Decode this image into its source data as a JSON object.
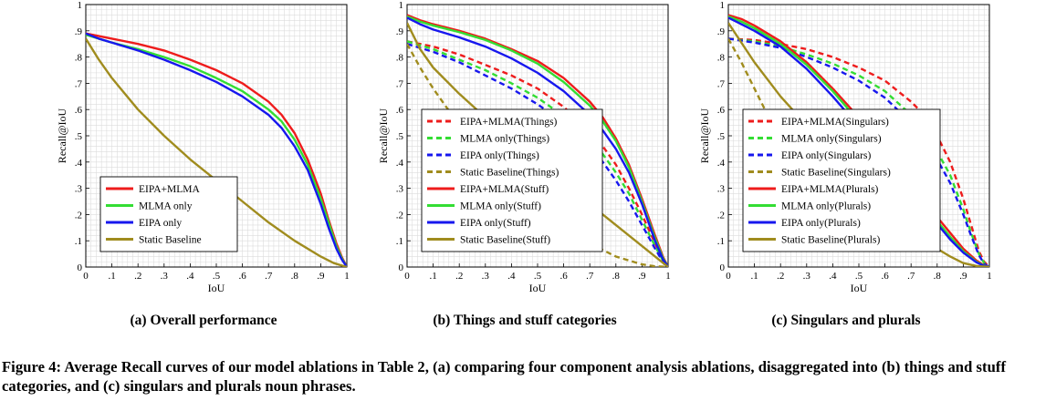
{
  "figure_caption": "Figure 4: Average Recall curves of our model ablations in Table 2, (a) comparing four component analysis ablations, disaggregated into (b) things and stuff categories, and (c) singulars and plurals noun phrases.",
  "colors": {
    "red": "#ee1c1c",
    "green": "#33dd33",
    "blue": "#1717ee",
    "olive": "#a08c1e",
    "grid": "#dcdcdc"
  },
  "chart_data": [
    {
      "id": "a",
      "subcaption": "(a) Overall performance",
      "type": "line",
      "xlabel": "IoU",
      "ylabel": "Recall@IoU",
      "xlim": [
        0,
        1
      ],
      "ylim": [
        0,
        1
      ],
      "xticks": [
        "0",
        ".1",
        ".2",
        ".3",
        ".4",
        ".5",
        ".6",
        ".7",
        ".8",
        ".9",
        "1"
      ],
      "yticks": [
        "0",
        ".1",
        ".2",
        ".3",
        ".4",
        ".5",
        ".6",
        ".7",
        ".8",
        ".9",
        "1"
      ],
      "grid": true,
      "legend_position": "bottom-left",
      "series": [
        {
          "name": "EIPA+MLMA",
          "color": "red",
          "dashed": false,
          "x": [
            0,
            0.05,
            0.1,
            0.2,
            0.3,
            0.4,
            0.5,
            0.6,
            0.7,
            0.75,
            0.8,
            0.85,
            0.9,
            0.93,
            0.96,
            0.98,
            1.0
          ],
          "y": [
            0.89,
            0.88,
            0.87,
            0.85,
            0.825,
            0.79,
            0.75,
            0.7,
            0.63,
            0.58,
            0.51,
            0.41,
            0.28,
            0.18,
            0.09,
            0.04,
            0.0
          ]
        },
        {
          "name": "MLMA only",
          "color": "green",
          "dashed": false,
          "x": [
            0,
            0.05,
            0.1,
            0.2,
            0.3,
            0.4,
            0.5,
            0.6,
            0.7,
            0.75,
            0.8,
            0.85,
            0.9,
            0.93,
            0.96,
            0.98,
            1.0
          ],
          "y": [
            0.885,
            0.87,
            0.855,
            0.83,
            0.8,
            0.765,
            0.72,
            0.67,
            0.6,
            0.555,
            0.485,
            0.39,
            0.26,
            0.17,
            0.08,
            0.035,
            0.0
          ]
        },
        {
          "name": "EIPA only",
          "color": "blue",
          "dashed": false,
          "x": [
            0,
            0.05,
            0.1,
            0.2,
            0.3,
            0.4,
            0.5,
            0.6,
            0.7,
            0.75,
            0.8,
            0.85,
            0.9,
            0.93,
            0.96,
            0.98,
            1.0
          ],
          "y": [
            0.89,
            0.87,
            0.855,
            0.825,
            0.79,
            0.75,
            0.705,
            0.65,
            0.58,
            0.53,
            0.46,
            0.37,
            0.24,
            0.15,
            0.07,
            0.03,
            0.0
          ]
        },
        {
          "name": "Static Baseline",
          "color": "olive",
          "dashed": false,
          "x": [
            0,
            0.05,
            0.1,
            0.2,
            0.3,
            0.4,
            0.5,
            0.6,
            0.7,
            0.8,
            0.9,
            0.95,
            1.0
          ],
          "y": [
            0.87,
            0.79,
            0.72,
            0.6,
            0.5,
            0.41,
            0.33,
            0.25,
            0.17,
            0.1,
            0.04,
            0.015,
            0.0
          ]
        }
      ]
    },
    {
      "id": "b",
      "subcaption": "(b) Things and stuff categories",
      "type": "line",
      "xlabel": "IoU",
      "ylabel": "Recall@IoU",
      "xlim": [
        0,
        1
      ],
      "ylim": [
        0,
        1
      ],
      "xticks": [
        "0",
        ".1",
        ".2",
        ".3",
        ".4",
        ".5",
        ".6",
        ".7",
        ".8",
        ".9",
        "1"
      ],
      "yticks": [
        "0",
        ".1",
        ".2",
        ".3",
        ".4",
        ".5",
        ".6",
        ".7",
        ".8",
        ".9",
        "1"
      ],
      "grid": true,
      "legend_position": "bottom-left",
      "series": [
        {
          "name": "EIPA+MLMA(Things)",
          "color": "red",
          "dashed": true,
          "x": [
            0,
            0.1,
            0.2,
            0.3,
            0.4,
            0.5,
            0.6,
            0.7,
            0.75,
            0.8,
            0.85,
            0.9,
            0.95,
            0.98,
            1.0
          ],
          "y": [
            0.86,
            0.84,
            0.81,
            0.77,
            0.73,
            0.68,
            0.61,
            0.52,
            0.46,
            0.39,
            0.3,
            0.2,
            0.09,
            0.03,
            0.0
          ]
        },
        {
          "name": "MLMA only(Things)",
          "color": "green",
          "dashed": true,
          "x": [
            0,
            0.1,
            0.2,
            0.3,
            0.4,
            0.5,
            0.6,
            0.7,
            0.75,
            0.8,
            0.85,
            0.9,
            0.95,
            0.98,
            1.0
          ],
          "y": [
            0.86,
            0.83,
            0.79,
            0.75,
            0.7,
            0.645,
            0.575,
            0.49,
            0.43,
            0.36,
            0.28,
            0.18,
            0.08,
            0.025,
            0.0
          ]
        },
        {
          "name": "EIPA only(Things)",
          "color": "blue",
          "dashed": true,
          "x": [
            0,
            0.1,
            0.2,
            0.3,
            0.4,
            0.5,
            0.6,
            0.7,
            0.75,
            0.8,
            0.85,
            0.9,
            0.95,
            0.98,
            1.0
          ],
          "y": [
            0.85,
            0.82,
            0.78,
            0.73,
            0.68,
            0.62,
            0.55,
            0.46,
            0.4,
            0.33,
            0.25,
            0.16,
            0.07,
            0.02,
            0.0
          ]
        },
        {
          "name": "Static Baseline(Things)",
          "color": "olive",
          "dashed": true,
          "x": [
            0,
            0.05,
            0.1,
            0.15,
            0.2,
            0.3,
            0.4,
            0.5,
            0.6,
            0.7,
            0.8,
            0.9,
            0.95,
            1.0
          ],
          "y": [
            0.85,
            0.76,
            0.68,
            0.61,
            0.54,
            0.43,
            0.33,
            0.24,
            0.16,
            0.09,
            0.04,
            0.01,
            0.003,
            0.0
          ]
        },
        {
          "name": "EIPA+MLMA(Stuff)",
          "color": "red",
          "dashed": false,
          "x": [
            0,
            0.05,
            0.1,
            0.2,
            0.3,
            0.4,
            0.5,
            0.6,
            0.7,
            0.75,
            0.8,
            0.85,
            0.9,
            0.95,
            0.98,
            1.0
          ],
          "y": [
            0.96,
            0.94,
            0.925,
            0.9,
            0.87,
            0.83,
            0.785,
            0.72,
            0.63,
            0.57,
            0.49,
            0.39,
            0.26,
            0.12,
            0.04,
            0.0
          ]
        },
        {
          "name": "MLMA only(Stuff)",
          "color": "green",
          "dashed": false,
          "x": [
            0,
            0.05,
            0.1,
            0.2,
            0.3,
            0.4,
            0.5,
            0.6,
            0.7,
            0.75,
            0.8,
            0.85,
            0.9,
            0.95,
            0.98,
            1.0
          ],
          "y": [
            0.955,
            0.935,
            0.92,
            0.895,
            0.865,
            0.825,
            0.775,
            0.705,
            0.615,
            0.555,
            0.48,
            0.38,
            0.25,
            0.11,
            0.035,
            0.0
          ]
        },
        {
          "name": "EIPA only(Stuff)",
          "color": "blue",
          "dashed": false,
          "x": [
            0,
            0.05,
            0.1,
            0.2,
            0.3,
            0.4,
            0.5,
            0.6,
            0.7,
            0.75,
            0.8,
            0.85,
            0.9,
            0.95,
            0.98,
            1.0
          ],
          "y": [
            0.95,
            0.925,
            0.905,
            0.875,
            0.84,
            0.795,
            0.74,
            0.67,
            0.58,
            0.52,
            0.45,
            0.36,
            0.24,
            0.1,
            0.03,
            0.0
          ]
        },
        {
          "name": "Static Baseline(Stuff)",
          "color": "olive",
          "dashed": false,
          "x": [
            0,
            0.05,
            0.1,
            0.2,
            0.3,
            0.4,
            0.5,
            0.6,
            0.7,
            0.8,
            0.9,
            0.95,
            1.0
          ],
          "y": [
            0.93,
            0.83,
            0.76,
            0.66,
            0.57,
            0.48,
            0.4,
            0.32,
            0.24,
            0.16,
            0.08,
            0.04,
            0.0
          ]
        }
      ]
    },
    {
      "id": "c",
      "subcaption": "(c) Singulars and plurals",
      "type": "line",
      "xlabel": "IoU",
      "ylabel": "Recall@IoU",
      "xlim": [
        0,
        1
      ],
      "ylim": [
        0,
        1
      ],
      "xticks": [
        "0",
        ".1",
        ".2",
        ".3",
        ".4",
        ".5",
        ".6",
        ".7",
        ".8",
        ".9",
        "1"
      ],
      "yticks": [
        "0",
        ".1",
        ".2",
        ".3",
        ".4",
        ".5",
        ".6",
        ".7",
        ".8",
        ".9",
        "1"
      ],
      "grid": true,
      "legend_position": "bottom-left",
      "series": [
        {
          "name": "EIPA+MLMA(Singulars)",
          "color": "red",
          "dashed": true,
          "x": [
            0,
            0.1,
            0.2,
            0.3,
            0.4,
            0.5,
            0.6,
            0.7,
            0.75,
            0.8,
            0.85,
            0.9,
            0.93,
            0.96,
            0.98,
            1.0
          ],
          "y": [
            0.87,
            0.865,
            0.85,
            0.83,
            0.8,
            0.76,
            0.71,
            0.63,
            0.58,
            0.5,
            0.4,
            0.26,
            0.16,
            0.06,
            0.02,
            0.0
          ]
        },
        {
          "name": "MLMA only(Singulars)",
          "color": "green",
          "dashed": true,
          "x": [
            0,
            0.1,
            0.2,
            0.3,
            0.4,
            0.5,
            0.6,
            0.7,
            0.75,
            0.8,
            0.85,
            0.9,
            0.93,
            0.96,
            0.98,
            1.0
          ],
          "y": [
            0.87,
            0.86,
            0.84,
            0.81,
            0.775,
            0.73,
            0.67,
            0.58,
            0.52,
            0.44,
            0.35,
            0.22,
            0.13,
            0.05,
            0.015,
            0.0
          ]
        },
        {
          "name": "EIPA only(Singulars)",
          "color": "blue",
          "dashed": true,
          "x": [
            0,
            0.1,
            0.2,
            0.3,
            0.4,
            0.5,
            0.6,
            0.7,
            0.75,
            0.8,
            0.85,
            0.9,
            0.93,
            0.96,
            0.98,
            1.0
          ],
          "y": [
            0.87,
            0.855,
            0.835,
            0.8,
            0.76,
            0.71,
            0.645,
            0.55,
            0.49,
            0.41,
            0.32,
            0.2,
            0.12,
            0.045,
            0.012,
            0.0
          ]
        },
        {
          "name": "Static Baseline(Singulars)",
          "color": "olive",
          "dashed": true,
          "x": [
            0,
            0.05,
            0.1,
            0.15,
            0.2,
            0.25
          ],
          "y": [
            0.87,
            0.78,
            0.68,
            0.58,
            0.47,
            0.37
          ]
        },
        {
          "name": "EIPA+MLMA(Plurals)",
          "color": "red",
          "dashed": false,
          "x": [
            0,
            0.05,
            0.1,
            0.2,
            0.3,
            0.4,
            0.5,
            0.6,
            0.7,
            0.75,
            0.8,
            0.85,
            0.9,
            0.95,
            0.98,
            1.0
          ],
          "y": [
            0.96,
            0.945,
            0.92,
            0.86,
            0.78,
            0.68,
            0.57,
            0.45,
            0.32,
            0.26,
            0.19,
            0.13,
            0.07,
            0.025,
            0.006,
            0.0
          ]
        },
        {
          "name": "MLMA only(Plurals)",
          "color": "green",
          "dashed": false,
          "x": [
            0,
            0.05,
            0.1,
            0.2,
            0.3,
            0.4,
            0.5,
            0.6,
            0.7,
            0.75,
            0.8,
            0.85,
            0.9,
            0.95,
            0.98,
            1.0
          ],
          "y": [
            0.955,
            0.935,
            0.91,
            0.85,
            0.77,
            0.67,
            0.555,
            0.43,
            0.3,
            0.24,
            0.175,
            0.115,
            0.06,
            0.02,
            0.005,
            0.0
          ]
        },
        {
          "name": "EIPA only(Plurals)",
          "color": "blue",
          "dashed": false,
          "x": [
            0,
            0.05,
            0.1,
            0.2,
            0.3,
            0.4,
            0.5,
            0.6,
            0.7,
            0.75,
            0.8,
            0.85,
            0.9,
            0.95,
            0.98,
            1.0
          ],
          "y": [
            0.95,
            0.925,
            0.9,
            0.84,
            0.755,
            0.65,
            0.535,
            0.41,
            0.285,
            0.225,
            0.165,
            0.105,
            0.055,
            0.018,
            0.004,
            0.0
          ]
        },
        {
          "name": "Static Baseline(Plurals)",
          "color": "olive",
          "dashed": false,
          "x": [
            0,
            0.1,
            0.2,
            0.3,
            0.4,
            0.5,
            0.6,
            0.7,
            0.8,
            0.85,
            0.9,
            0.95,
            1.0
          ],
          "y": [
            0.93,
            0.78,
            0.65,
            0.54,
            0.44,
            0.34,
            0.24,
            0.15,
            0.07,
            0.04,
            0.015,
            0.004,
            0.0
          ]
        }
      ]
    }
  ]
}
